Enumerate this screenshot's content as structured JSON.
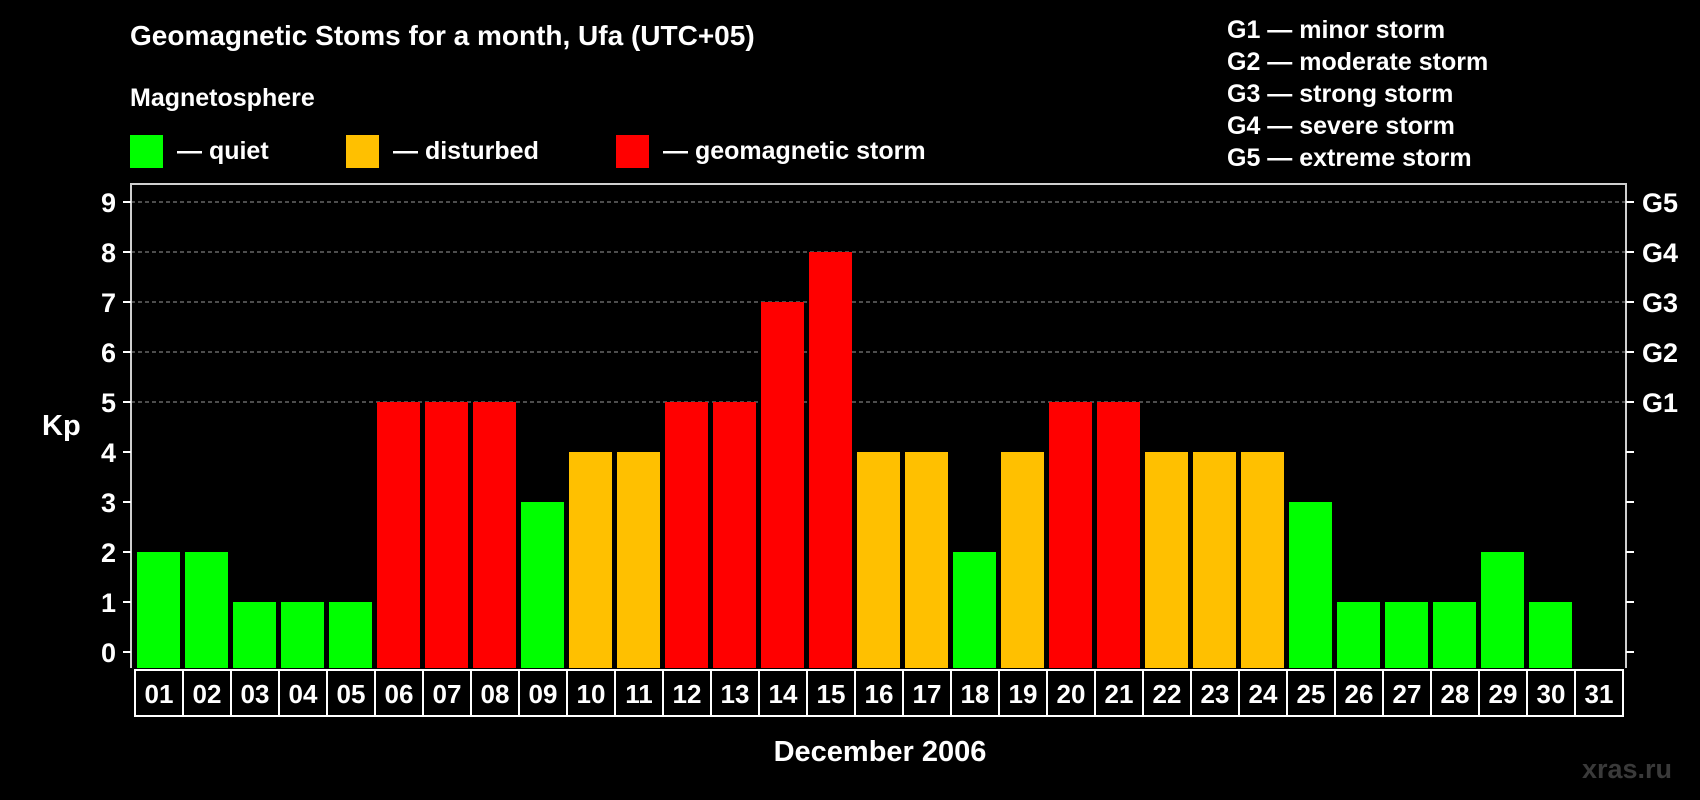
{
  "title": "Geomagnetic Stoms for a month, Ufa (UTC+05)",
  "subtitle": "Magnetosphere",
  "legend": [
    {
      "label": "— quiet",
      "color": "#00ff00"
    },
    {
      "label": "— disturbed",
      "color": "#ffc000"
    },
    {
      "label": "— geomagnetic storm",
      "color": "#ff0000"
    }
  ],
  "storm_scale": [
    "G1 — minor storm",
    "G2 — moderate storm",
    "G3 — strong storm",
    "G4 — severe storm",
    "G5 — extreme storm"
  ],
  "watermark": "xras.ru",
  "chart_data": {
    "type": "bar",
    "title": "Geomagnetic Stoms for a month, Ufa (UTC+05)",
    "xlabel": "December 2006",
    "ylabel": "Kp",
    "ylim": [
      0,
      9
    ],
    "yticks": [
      0,
      1,
      2,
      3,
      4,
      5,
      6,
      7,
      8,
      9
    ],
    "right_ticks": [
      {
        "value": 5,
        "label": "G1"
      },
      {
        "value": 6,
        "label": "G2"
      },
      {
        "value": 7,
        "label": "G3"
      },
      {
        "value": 8,
        "label": "G4"
      },
      {
        "value": 9,
        "label": "G5"
      }
    ],
    "grid": "horizontal dashed at 5-9",
    "categories": [
      "01",
      "02",
      "03",
      "04",
      "05",
      "06",
      "07",
      "08",
      "09",
      "10",
      "11",
      "12",
      "13",
      "14",
      "15",
      "16",
      "17",
      "18",
      "19",
      "20",
      "21",
      "22",
      "23",
      "24",
      "25",
      "26",
      "27",
      "28",
      "29",
      "30",
      "31"
    ],
    "values": [
      2,
      2,
      1,
      1,
      1,
      5,
      5,
      5,
      3,
      4,
      4,
      5,
      5,
      7,
      8,
      4,
      4,
      2,
      4,
      5,
      5,
      4,
      4,
      4,
      3,
      1,
      1,
      1,
      2,
      1,
      null
    ],
    "color_rule": {
      "quiet": "#00ff00",
      "disturbed": "#ffc000",
      "storm": "#ff0000"
    }
  }
}
